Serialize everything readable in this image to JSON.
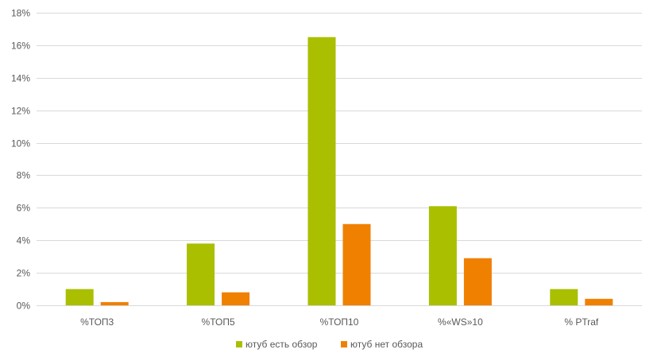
{
  "chart_data": {
    "type": "bar",
    "categories": [
      "%ТОП3",
      "%ТОП5",
      "%ТОП10",
      "%«WS»10",
      "% PTraf"
    ],
    "series": [
      {
        "name": "ютуб есть обзор",
        "color": "#a9bf00",
        "values": [
          1.0,
          3.8,
          16.5,
          6.1,
          1.0
        ]
      },
      {
        "name": "ютуб нет обзора",
        "color": "#f08000",
        "values": [
          0.2,
          0.8,
          5.0,
          2.9,
          0.4
        ]
      }
    ],
    "y_ticks": [
      "0%",
      "2%",
      "4%",
      "6%",
      "8%",
      "10%",
      "12%",
      "14%",
      "16%",
      "18%"
    ],
    "ylim": [
      0,
      18
    ],
    "grid": true,
    "legend_position": "bottom",
    "title": "",
    "xlabel": "",
    "ylabel": ""
  }
}
